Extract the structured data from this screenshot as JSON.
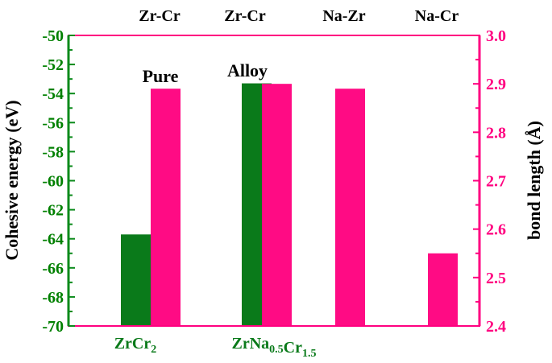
{
  "chart_data": {
    "type": "bar",
    "top_labels": [
      "Zr-Cr",
      "Zr-Cr",
      "Na-Zr",
      "Na-Cr"
    ],
    "annotations": [
      "Pure",
      "Alloy"
    ],
    "x_categories": [
      {
        "main": "ZrCr",
        "parts": [
          {
            "t": "ZrCr",
            "sub": false
          },
          {
            "t": "2",
            "sub": true
          }
        ]
      },
      {
        "main": "ZrNa0.5Cr1.5",
        "parts": [
          {
            "t": "ZrNa",
            "sub": false
          },
          {
            "t": "0.5",
            "sub": true
          },
          {
            "t": "Cr",
            "sub": false
          },
          {
            "t": "1.5",
            "sub": true
          }
        ]
      }
    ],
    "left_axis": {
      "label": "Cohesive energy (eV)",
      "ylim": [
        -70,
        -50
      ],
      "ticks": [
        "-70",
        "-68",
        "-66",
        "-64",
        "-62",
        "-60",
        "-58",
        "-56",
        "-54",
        "-52",
        "-50"
      ],
      "tick_values": [
        -70,
        -68,
        -66,
        -64,
        -62,
        -60,
        -58,
        -56,
        -54,
        -52,
        -50
      ],
      "color": "#008000"
    },
    "right_axis": {
      "label": "bond length (Å)",
      "ylim": [
        2.4,
        3.0
      ],
      "ticks": [
        "2.4",
        "2.5",
        "2.6",
        "2.7",
        "2.8",
        "2.9",
        "3.0"
      ],
      "tick_values": [
        2.4,
        2.5,
        2.6,
        2.7,
        2.8,
        2.9,
        3.0
      ],
      "color": "#ff0080"
    },
    "series": [
      {
        "axis": "left",
        "color": "#0a7a1a",
        "bars": [
          {
            "slot": 0,
            "value": -63.7
          },
          {
            "slot": 2,
            "value": -53.3
          }
        ]
      },
      {
        "axis": "right",
        "color": "#ff0b84",
        "bars": [
          {
            "slot": 1,
            "value": 2.89
          },
          {
            "slot": 3,
            "value": 2.9
          },
          {
            "slot": 4,
            "value": 2.89
          },
          {
            "slot": 5,
            "value": 2.55
          }
        ]
      }
    ]
  }
}
